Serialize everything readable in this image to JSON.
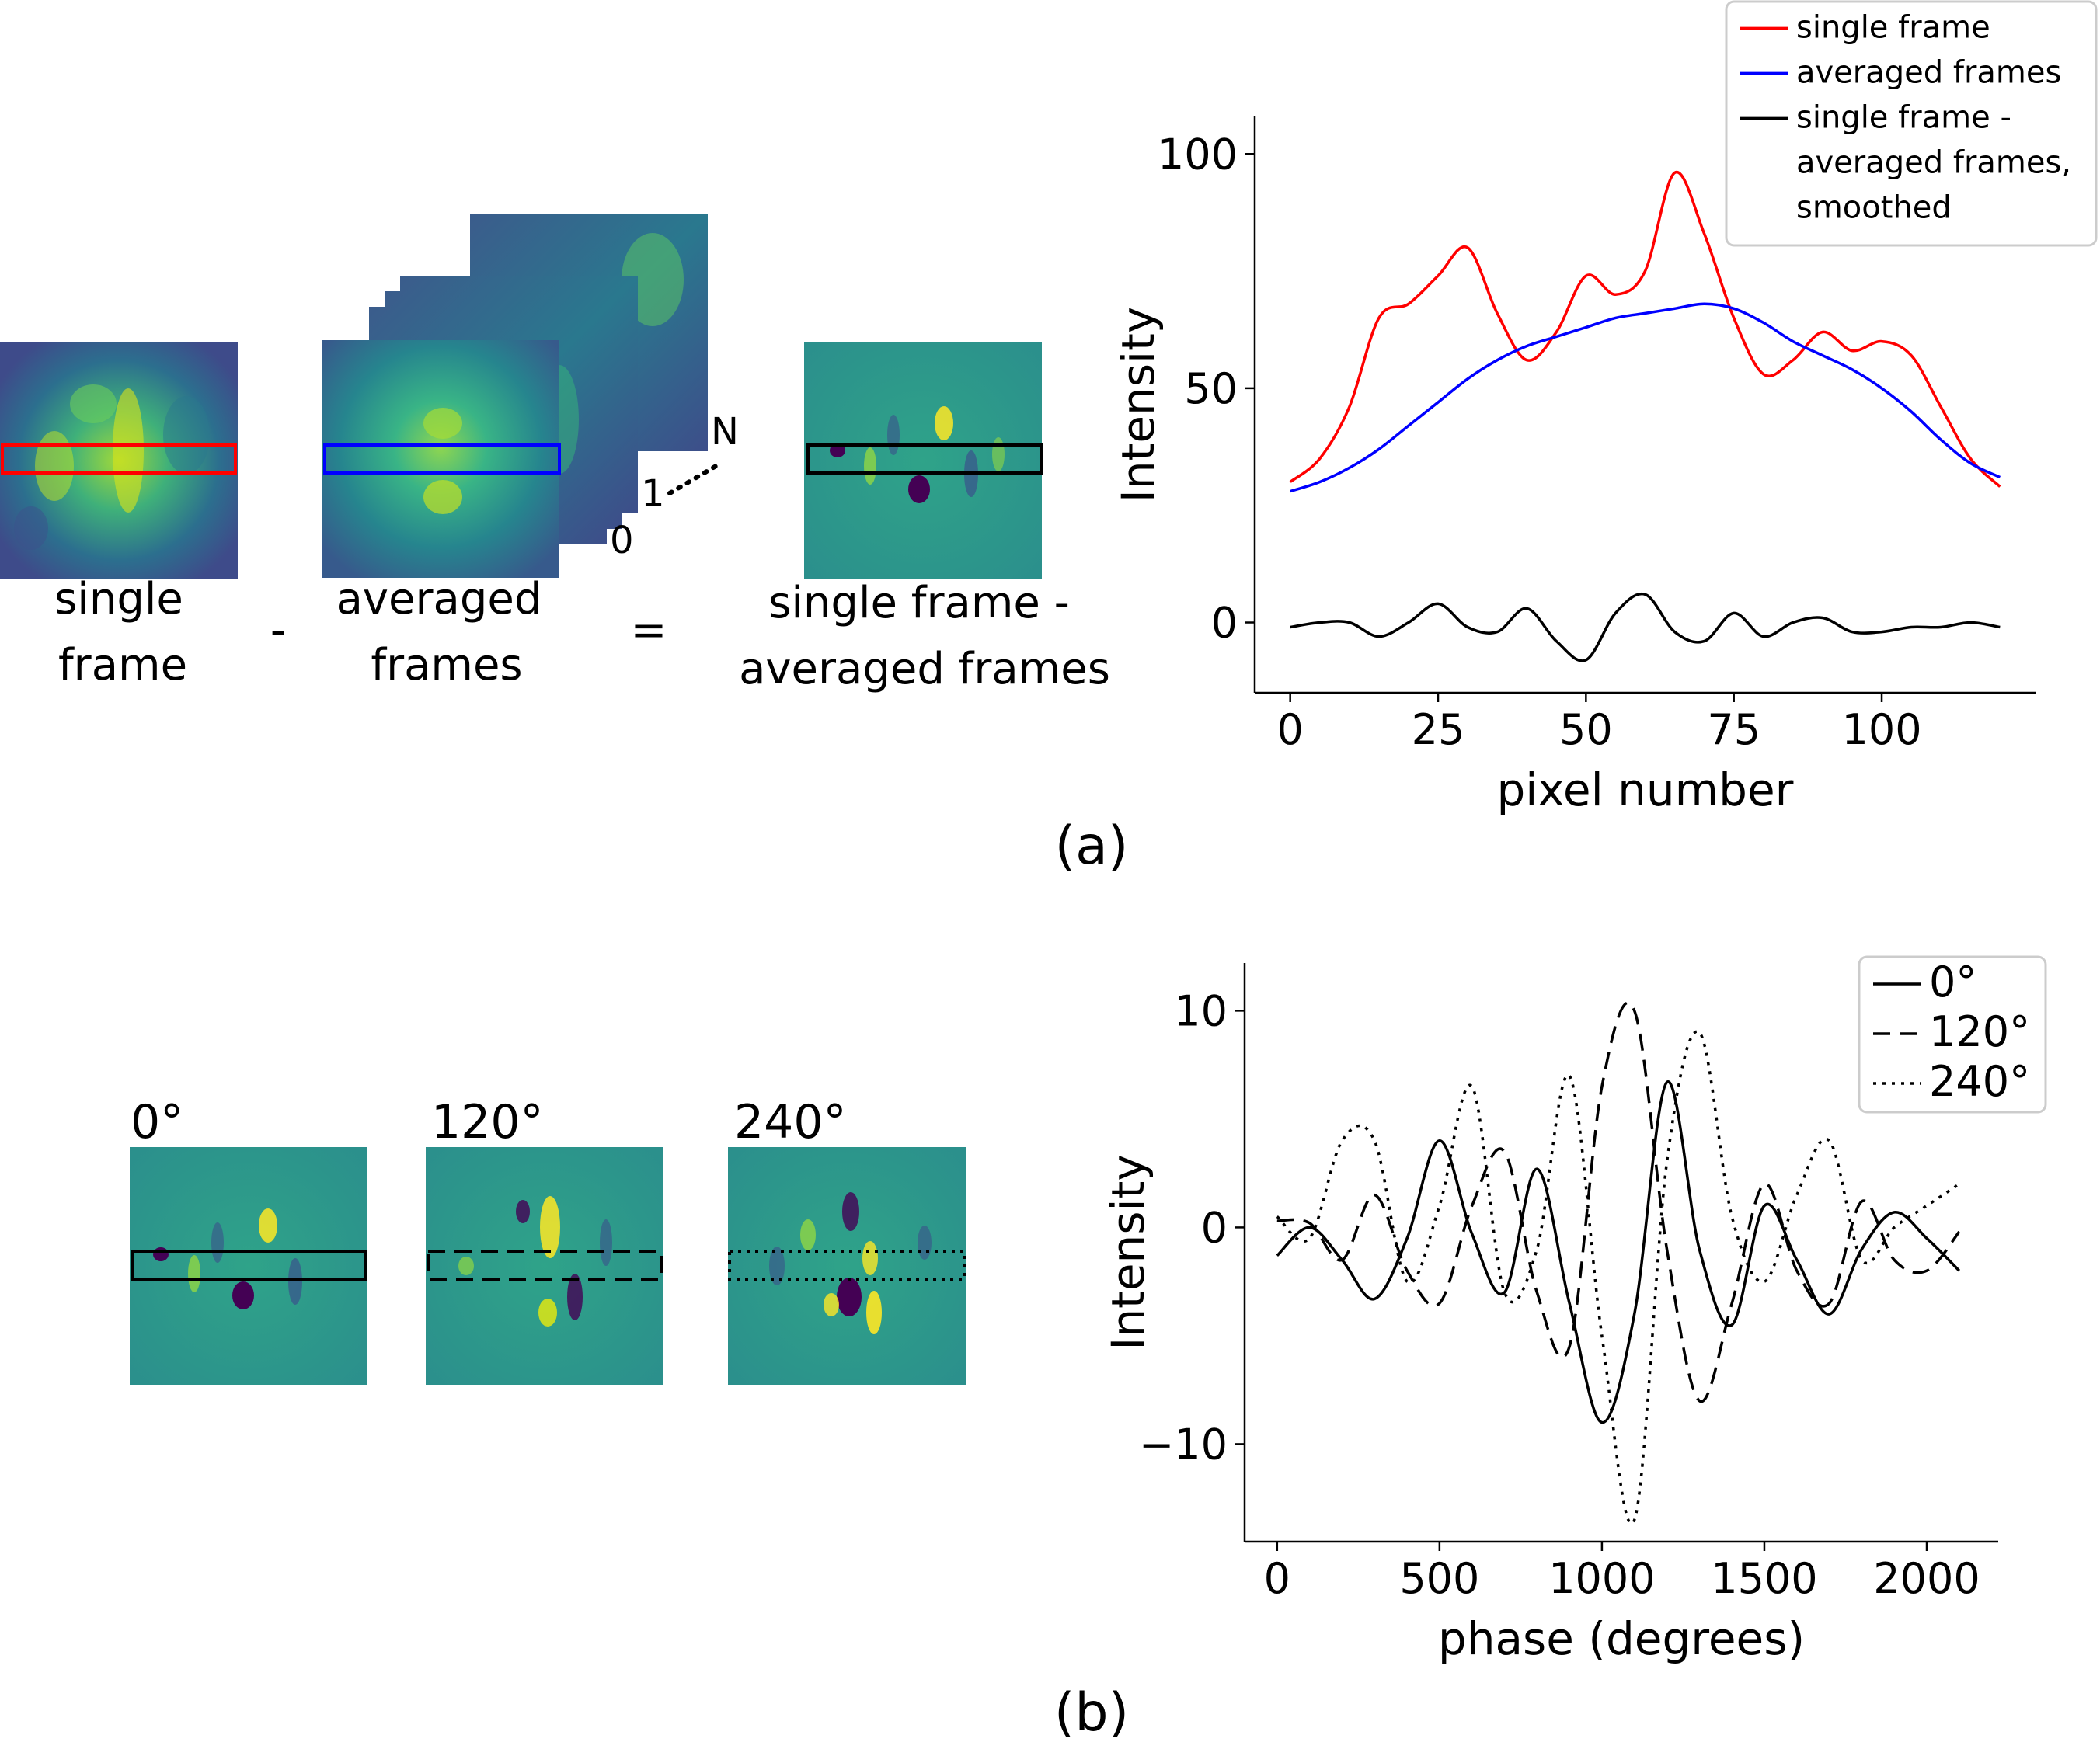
{
  "panel_a": {
    "caption": "(a)",
    "stack_numbers": {
      "zero": "0",
      "one": "1",
      "n": "N"
    },
    "operators": {
      "minus": "-",
      "equals": "="
    },
    "labels": {
      "single_line1": "single",
      "single_line2": "frame",
      "avg_line1": "averaged",
      "avg_line2": "frames",
      "diff_line1": "single frame -",
      "diff_line2": "averaged frames"
    }
  },
  "panel_b": {
    "caption": "(b)",
    "image_labels": [
      "0°",
      "120°",
      "240°"
    ]
  },
  "chart_data": [
    {
      "type": "line",
      "panel": "a",
      "xlabel": "pixel number",
      "ylabel": "Intensity",
      "xlim": [
        -6,
        126
      ],
      "ylim": [
        -15,
        108
      ],
      "xticks": [
        0,
        25,
        50,
        75,
        100
      ],
      "yticks": [
        0,
        50,
        100
      ],
      "legend_position": "top-right",
      "x": [
        0,
        5,
        10,
        15,
        20,
        25,
        30,
        35,
        40,
        45,
        50,
        55,
        60,
        65,
        70,
        75,
        80,
        85,
        90,
        95,
        100,
        105,
        110,
        115,
        120
      ],
      "series": [
        {
          "name": "single frame",
          "color": "#ff0000",
          "style": "solid",
          "values": [
            30,
            35,
            46,
            65,
            68,
            74,
            80,
            66,
            56,
            62,
            74,
            70,
            75,
            96,
            83,
            65,
            53,
            56,
            62,
            58,
            60,
            57,
            46,
            35,
            29
          ]
        },
        {
          "name": "averaged frames",
          "color": "#0000ff",
          "style": "solid",
          "values": [
            28,
            30,
            33,
            37,
            42,
            47,
            52,
            56,
            59,
            61,
            63,
            65,
            66,
            67,
            68,
            67,
            64,
            60,
            57,
            54,
            50,
            45,
            39,
            34,
            31
          ]
        },
        {
          "name": "single frame -\naveraged frames,\nsmoothed",
          "color": "#000000",
          "style": "solid",
          "values": [
            -1,
            0,
            0,
            -3,
            0,
            4,
            -1,
            -2,
            3,
            -4,
            -8,
            2,
            6,
            -2,
            -4,
            2,
            -3,
            0,
            1,
            -2,
            -2,
            -1,
            -1,
            0,
            -1
          ]
        }
      ]
    },
    {
      "type": "line",
      "panel": "b",
      "xlabel": "phase (degrees)",
      "ylabel": "Intensity",
      "xlim": [
        -100,
        2220
      ],
      "ylim": [
        -14.5,
        12.2
      ],
      "xticks": [
        0,
        500,
        1000,
        1500,
        2000
      ],
      "yticks": [
        -10,
        0,
        10
      ],
      "legend_position": "top-right",
      "x": [
        0,
        100,
        200,
        300,
        400,
        500,
        600,
        700,
        800,
        900,
        1000,
        1100,
        1200,
        1300,
        1400,
        1500,
        1600,
        1700,
        1800,
        1900,
        2000,
        2100
      ],
      "series": [
        {
          "name": "0°",
          "style": "solid",
          "values": [
            -1.3,
            0,
            -1.5,
            -3.3,
            -0.5,
            4,
            -0.3,
            -3,
            2.7,
            -3.5,
            -9,
            -4,
            6.7,
            -1,
            -4.5,
            1,
            -1.5,
            -4,
            -1,
            0.7,
            -0.5,
            -2
          ]
        },
        {
          "name": "120°",
          "style": "dashed",
          "values": [
            0.3,
            0.2,
            -1.5,
            1.5,
            -2,
            -3.5,
            1,
            3.5,
            -3,
            -5.5,
            6.5,
            10,
            -1,
            -8,
            -3.5,
            2,
            -2,
            -3.5,
            1.2,
            -1.5,
            -2,
            -0.2
          ]
        },
        {
          "name": "240°",
          "style": "dotted",
          "values": [
            0.5,
            -0.5,
            4,
            4,
            -2.5,
            1,
            6.5,
            -3,
            -1,
            7,
            -5,
            -13.5,
            3,
            9,
            0.5,
            -2.5,
            1.5,
            4,
            -1.5,
            0,
            1,
            2
          ]
        }
      ]
    }
  ]
}
